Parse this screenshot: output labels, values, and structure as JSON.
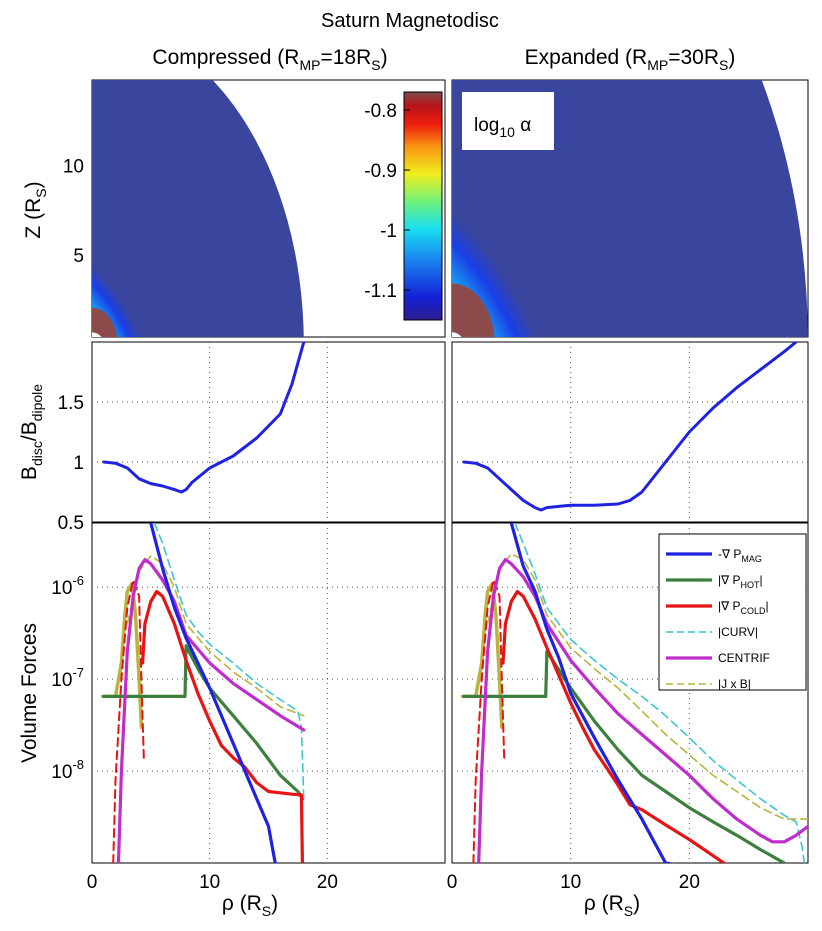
{
  "chart_data": {
    "type": "line",
    "title": "Saturn Magnetodisc",
    "columns": [
      {
        "id": "compressed",
        "base": "Compressed (R",
        "sub1": "MP",
        "mid": "=18R",
        "sub2": "S",
        "end": ")"
      },
      {
        "id": "expanded",
        "base": "Expanded (R",
        "sub1": "MP",
        "mid": "=30R",
        "sub2": "S",
        "end": ")"
      }
    ],
    "xlabel": {
      "base": "ρ (R",
      "sub": "S",
      "end": ")"
    },
    "xlim": [
      0,
      30
    ],
    "xticks": [
      0,
      10,
      20
    ],
    "rows": [
      {
        "id": "alpha-map",
        "type": "heatmap",
        "ylabel": {
          "base": "Z (R",
          "sub": "S",
          "end": ")"
        },
        "ylim": [
          0.4,
          14.8
        ],
        "yticks": [
          5,
          10
        ],
        "colorbar": {
          "label_base": "log",
          "label_sub": "10",
          "label_end": " α",
          "range": [
            -1.15,
            -0.77
          ],
          "ticks": [
            "-0.8",
            "-0.9",
            "-1",
            "-1.1"
          ],
          "tick_values": [
            -0.8,
            -0.9,
            -1.0,
            -1.1
          ]
        },
        "outer_boundary_rs": {
          "compressed": 18,
          "expanded": 30
        },
        "planet_radius_rs": 1,
        "high_alpha_extent_rs": {
          "compressed": 6,
          "expanded": 10
        }
      },
      {
        "id": "field-ratio",
        "type": "line",
        "ylabel": {
          "base": "B",
          "sub1": "disc",
          "mid": "/B",
          "sub2": "dipole"
        },
        "ylim": [
          0.5,
          2.0
        ],
        "yticks": [
          0.5,
          1.0,
          1.5
        ],
        "ytick_labels": [
          "0.5",
          "1",
          "1.5"
        ],
        "series": {
          "compressed": {
            "color": "#1f22e0",
            "x": [
              1,
              2,
              3,
              4,
              5,
              6,
              7,
              7.6,
              8,
              8.5,
              10,
              12,
              14,
              16,
              17,
              18
            ],
            "y": [
              1.0,
              0.99,
              0.95,
              0.86,
              0.82,
              0.8,
              0.77,
              0.75,
              0.77,
              0.83,
              0.95,
              1.05,
              1.2,
              1.4,
              1.65,
              2.0
            ]
          },
          "expanded": {
            "color": "#1f22e0",
            "x": [
              1,
              2,
              3,
              4,
              5,
              6,
              7,
              7.5,
              8,
              9,
              10,
              12,
              14,
              15,
              16,
              18,
              20,
              22,
              24,
              26,
              28,
              29
            ],
            "y": [
              1.0,
              0.99,
              0.95,
              0.86,
              0.77,
              0.68,
              0.62,
              0.6,
              0.62,
              0.63,
              0.64,
              0.64,
              0.65,
              0.68,
              0.75,
              1.0,
              1.25,
              1.45,
              1.62,
              1.77,
              1.92,
              2.0
            ]
          }
        }
      },
      {
        "id": "volume-forces",
        "type": "line",
        "yscale": "log",
        "ylabel": {
          "text": "Volume Forces"
        },
        "ylim": [
          1e-09,
          5e-06
        ],
        "yticks": [
          {
            "value": 1e-06,
            "base": "10",
            "exp": "-6"
          },
          {
            "value": 1e-07,
            "base": "10",
            "exp": "-7"
          },
          {
            "value": 1e-08,
            "base": "10",
            "exp": "-8"
          }
        ],
        "legend": {
          "placement": "top-right",
          "entries": [
            {
              "id": "magp",
              "pre": "-∇ P",
              "sub": "MAG",
              "post": "",
              "color": "#1f22e0",
              "dash": false
            },
            {
              "id": "hot",
              "pre": "|∇ P",
              "sub": "HOT",
              "post": "|",
              "color": "#3d7f3d",
              "dash": false
            },
            {
              "id": "cold",
              "pre": "|∇ P",
              "sub": "COLD",
              "post": "|",
              "color": "#e61414",
              "dash": false
            },
            {
              "id": "curv",
              "pre": "|CURV|",
              "sub": "",
              "post": "",
              "color": "#3ec6cf",
              "dash": true
            },
            {
              "id": "cent",
              "pre": "CENTRIF",
              "sub": "",
              "post": "",
              "color": "#c02dcc",
              "dash": false
            },
            {
              "id": "jxb",
              "pre": "|J x B|",
              "sub": "",
              "post": "",
              "color": "#b8b43c",
              "dash": true
            }
          ]
        },
        "series": {
          "compressed": {
            "magp": {
              "x": [
                5,
                6,
                7,
                8,
                9,
                10,
                12,
                14,
                15,
                16,
                16.5
              ],
              "y": [
                5e-06,
                1.6e-06,
                6e-07,
                2.8e-07,
                1.5e-07,
                8e-08,
                2e-08,
                5e-09,
                2.5e-09,
                5e-10,
                1e-10
              ]
            },
            "hot": {
              "x": [
                1,
                2,
                3,
                4,
                5,
                6,
                7,
                7.9,
                8,
                9,
                10,
                12,
                14,
                16,
                17.5,
                17.9
              ],
              "y": [
                6.5e-08,
                6.5e-08,
                6.5e-08,
                6.5e-08,
                6.5e-08,
                6.5e-08,
                6.5e-08,
                6.5e-08,
                2.3e-07,
                1.3e-07,
                8e-08,
                4e-08,
                2e-08,
                9e-09,
                6e-09,
                5e-09
              ]
            },
            "cold": {
              "x": [
                4.3,
                4.5,
                5,
                5.5,
                6,
                7,
                8,
                9,
                10,
                11,
                12,
                13,
                14,
                15,
                16,
                17,
                17.8,
                18
              ],
              "y": [
                1.5e-07,
                4e-07,
                7e-07,
                9e-07,
                8e-07,
                4e-07,
                1.6e-07,
                7e-08,
                3.5e-08,
                1.9e-08,
                1.4e-08,
                1.1e-08,
                7.5e-09,
                6e-09,
                5.8e-09,
                5.6e-09,
                5.5e-09,
                1e-10
              ]
            },
            "curv": {
              "x": [
                5.3,
                6,
                7,
                8,
                9,
                10,
                12,
                14,
                16,
                17.5,
                17.8,
                18
              ],
              "y": [
                5e-06,
                3e-06,
                1.2e-06,
                5e-07,
                3.3e-07,
                2.4e-07,
                1.5e-07,
                9e-08,
                6e-08,
                4.5e-08,
                3e-08,
                5e-09
              ]
            },
            "cent": {
              "x": [
                2,
                2.5,
                3,
                3.5,
                4,
                4.5,
                5,
                6,
                7,
                8,
                10,
                12,
                14,
                16,
                18
              ],
              "y": [
                1e-10,
                1e-08,
                2e-07,
                8e-07,
                1.6e-06,
                2e-06,
                1.8e-06,
                1.2e-06,
                7e-07,
                3e-07,
                1.5e-07,
                9e-08,
                6e-08,
                4e-08,
                2.8e-08
              ]
            },
            "jxb": {
              "x": [
                3,
                4,
                5,
                6,
                7,
                8,
                10,
                12,
                14,
                16,
                18
              ],
              "y": [
                4e-07,
                1.5e-06,
                2.2e-06,
                1.8e-06,
                1e-06,
                4e-07,
                2e-07,
                1.2e-07,
                8e-08,
                5e-08,
                4e-08
              ]
            },
            "hotsp": {
              "x": [
                0.9,
                1.5,
                2,
                2.5,
                2.8,
                3,
                3.4,
                3.7,
                4,
                4.2
              ],
              "y": [
                6.5e-08,
                6.5e-08,
                6.5e-08,
                1.5e-07,
                5e-07,
                9e-07,
                1.1e-06,
                5e-07,
                1e-07,
                3e-08
              ]
            },
            "colddash": {
              "x": [
                1.8,
                2,
                2.5,
                3,
                3.5,
                4,
                4.2,
                4.4
              ],
              "y": [
                1e-09,
                8e-09,
                1e-07,
                6e-07,
                1.2e-06,
                8e-07,
                1e-07,
                1.4e-08
              ]
            }
          },
          "expanded": {
            "magp": {
              "x": [
                5,
                6,
                7,
                8,
                9,
                10,
                12,
                14,
                16,
                18,
                20,
                22,
                23,
                24
              ],
              "y": [
                5e-06,
                1.7e-06,
                9e-07,
                3.5e-07,
                1.7e-07,
                7e-08,
                2.3e-08,
                8e-09,
                3e-09,
                1e-09,
                9e-10,
                8e-10,
                7e-10,
                5e-10
              ]
            },
            "hot": {
              "x": [
                1,
                2,
                3,
                4,
                5,
                6,
                7,
                7.9,
                8,
                10,
                12,
                14,
                16,
                18,
                20,
                22,
                24,
                26,
                28,
                29.5
              ],
              "y": [
                6.5e-08,
                6.5e-08,
                6.5e-08,
                6.5e-08,
                6.5e-08,
                6.5e-08,
                6.5e-08,
                6.5e-08,
                2e-07,
                8e-08,
                3.5e-08,
                1.7e-08,
                9e-09,
                6e-09,
                4e-09,
                2.8e-09,
                2e-09,
                1.4e-09,
                1e-09,
                7e-10
              ]
            },
            "cold": {
              "x": [
                4.3,
                4.5,
                5,
                5.5,
                6,
                7,
                8,
                9,
                10,
                11,
                12,
                13,
                14,
                15,
                16,
                18,
                20,
                22,
                24,
                25
              ],
              "y": [
                1.5e-07,
                4e-07,
                7e-07,
                9e-07,
                8e-07,
                4.5e-07,
                2.2e-07,
                1.1e-07,
                5.5e-08,
                3e-08,
                1.7e-08,
                1.1e-08,
                7e-09,
                4.3e-09,
                3.8e-09,
                2.6e-09,
                1.8e-09,
                1.2e-09,
                8e-10,
                5e-10
              ]
            },
            "curv": {
              "x": [
                5.3,
                6,
                7,
                8,
                9,
                10,
                12,
                14,
                16,
                18,
                20,
                22,
                24,
                26,
                28,
                29,
                29.5,
                30
              ],
              "y": [
                5e-06,
                3e-06,
                1.4e-06,
                6e-07,
                4e-07,
                2.7e-07,
                1.6e-07,
                1e-07,
                6.5e-08,
                4e-08,
                2.3e-08,
                1.3e-08,
                8e-09,
                5e-09,
                3.3e-09,
                2.8e-09,
                1.5e-09,
                5e-10
              ]
            },
            "cent": {
              "x": [
                2,
                2.5,
                3,
                3.5,
                4,
                4.5,
                5,
                6,
                7,
                8,
                10,
                12,
                14,
                16,
                18,
                20,
                22,
                24,
                26,
                27,
                28,
                29,
                30
              ],
              "y": [
                1e-10,
                1e-08,
                2e-07,
                8e-07,
                1.6e-06,
                2e-06,
                1.8e-06,
                1.3e-06,
                8e-07,
                4e-07,
                1.6e-07,
                8e-08,
                4.2e-08,
                2.5e-08,
                1.5e-08,
                9e-09,
                5e-09,
                3e-09,
                2e-09,
                1.7e-09,
                1.7e-09,
                2e-09,
                2.5e-09
              ]
            },
            "jxb": {
              "x": [
                3,
                4,
                5,
                6,
                7,
                8,
                10,
                12,
                14,
                16,
                18,
                20,
                22,
                24,
                26,
                28,
                30
              ],
              "y": [
                4e-07,
                1.6e-06,
                2.3e-06,
                2e-06,
                1.2e-06,
                5e-07,
                2.2e-07,
                1.3e-07,
                8e-08,
                4.5e-08,
                2.5e-08,
                1.5e-08,
                9e-09,
                6e-09,
                4e-09,
                3e-09,
                3e-09
              ]
            },
            "hotsp": {
              "x": [
                0.9,
                1.5,
                2,
                2.5,
                2.8,
                3,
                3.4,
                3.7,
                4,
                4.2
              ],
              "y": [
                6.5e-08,
                6.5e-08,
                6.5e-08,
                1.5e-07,
                5e-07,
                9e-07,
                1.1e-06,
                5e-07,
                1e-07,
                3e-08
              ]
            },
            "colddash": {
              "x": [
                1.8,
                2,
                2.5,
                3,
                3.5,
                4,
                4.2,
                4.4
              ],
              "y": [
                1e-09,
                8e-09,
                1e-07,
                6e-07,
                1.2e-06,
                8e-07,
                1e-07,
                1.4e-08
              ]
            }
          }
        }
      }
    ]
  }
}
